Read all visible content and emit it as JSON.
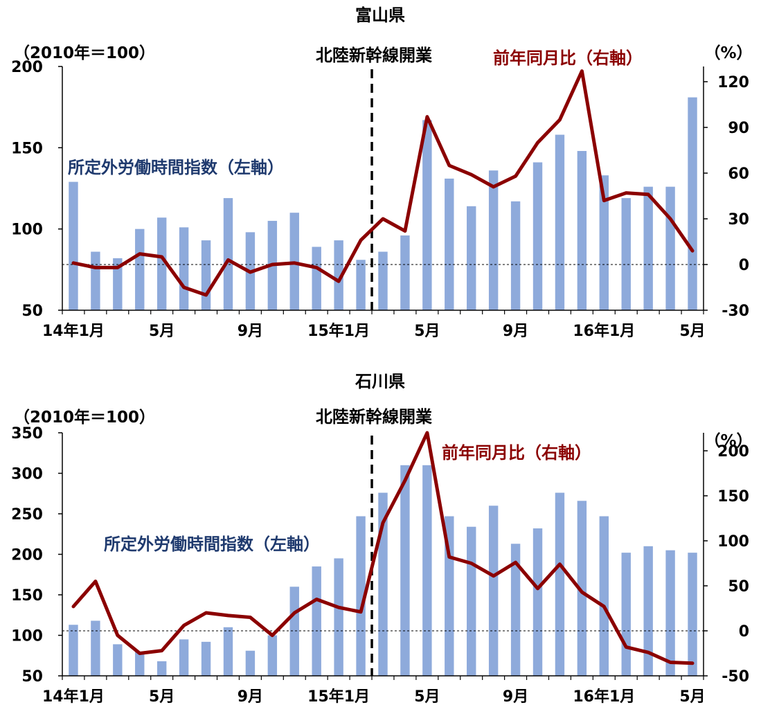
{
  "colors": {
    "bar": "#8eaadb",
    "line": "#8b0000",
    "annotation_blue": "#1f3a6e",
    "axis": "#000000"
  },
  "chart_data": [
    {
      "type": "bar",
      "title": "富山県",
      "left_unit_label": "（2010年＝100）",
      "right_unit_label": "（%）",
      "event_label": "北陸新幹線開業",
      "bar_series_label": "所定外労働時間指数（左軸）",
      "line_series_label": "前年同月比（右軸）",
      "x_tick_labels": [
        "14年1月",
        "5月",
        "9月",
        "15年1月",
        "5月",
        "9月",
        "16年1月",
        "5月"
      ],
      "x_tick_indices": [
        0,
        4,
        8,
        12,
        16,
        20,
        24,
        28
      ],
      "y_left": {
        "min": 50,
        "max": 200,
        "ticks": [
          "50",
          "100",
          "150",
          "200"
        ],
        "tick_values": [
          50,
          100,
          150,
          200
        ]
      },
      "y_right": {
        "min": -30,
        "max": 130,
        "ticks": [
          "-30",
          "0",
          "30",
          "60",
          "90",
          "120"
        ],
        "tick_values": [
          -30,
          0,
          30,
          60,
          90,
          120
        ]
      },
      "event_index": 13.5,
      "reference_right_value": 0,
      "series": [
        {
          "name": "所定外労働時間指数（左軸）",
          "axis": "left",
          "type": "bar",
          "values": [
            129,
            86,
            82,
            100,
            107,
            101,
            93,
            119,
            98,
            105,
            110,
            89,
            93,
            81,
            86,
            96,
            167,
            131,
            114,
            136,
            117,
            141,
            158,
            148,
            133,
            119,
            126,
            126,
            181
          ]
        },
        {
          "name": "前年同月比（右軸）",
          "axis": "right",
          "type": "line",
          "values": [
            1,
            -2,
            -2,
            7,
            5,
            -15,
            -20,
            3,
            -5,
            0,
            1,
            -2,
            -11,
            16,
            30,
            22,
            97,
            65,
            59,
            51,
            58,
            80,
            95,
            127,
            42,
            47,
            46,
            30,
            9
          ]
        }
      ]
    },
    {
      "type": "bar",
      "title": "石川県",
      "left_unit_label": "（2010年＝100）",
      "right_unit_label": "（%）",
      "event_label": "北陸新幹線開業",
      "bar_series_label": "所定外労働時間指数（左軸）",
      "line_series_label": "前年同月比（右軸）",
      "x_tick_labels": [
        "14年1月",
        "5月",
        "9月",
        "15年1月",
        "5月",
        "9月",
        "16年1月",
        "5月"
      ],
      "x_tick_indices": [
        0,
        4,
        8,
        12,
        16,
        20,
        24,
        28
      ],
      "y_left": {
        "min": 50,
        "max": 350,
        "ticks": [
          "50",
          "100",
          "150",
          "200",
          "250",
          "300",
          "350"
        ],
        "tick_values": [
          50,
          100,
          150,
          200,
          250,
          300,
          350
        ]
      },
      "y_right": {
        "min": -50,
        "max": 220,
        "ticks": [
          "-50",
          "0",
          "50",
          "100",
          "150",
          "200"
        ],
        "tick_values": [
          -50,
          0,
          50,
          100,
          150,
          200
        ]
      },
      "event_index": 13.5,
      "reference_right_value": 0,
      "series": [
        {
          "name": "所定外労働時間指数（左軸）",
          "axis": "left",
          "type": "bar",
          "values": [
            113,
            118,
            89,
            80,
            68,
            95,
            92,
            110,
            81,
            100,
            160,
            185,
            195,
            247,
            276,
            310,
            310,
            247,
            234,
            260,
            213,
            232,
            276,
            266,
            247,
            202,
            210,
            205,
            202
          ]
        },
        {
          "name": "前年同月比（右軸）",
          "axis": "right",
          "type": "line",
          "values": [
            27,
            55,
            -5,
            -25,
            -22,
            6,
            20,
            17,
            15,
            -5,
            20,
            35,
            26,
            21,
            120,
            167,
            220,
            82,
            75,
            61,
            76,
            47,
            74,
            43,
            27,
            -18,
            -24,
            -35,
            -36
          ]
        }
      ]
    }
  ]
}
